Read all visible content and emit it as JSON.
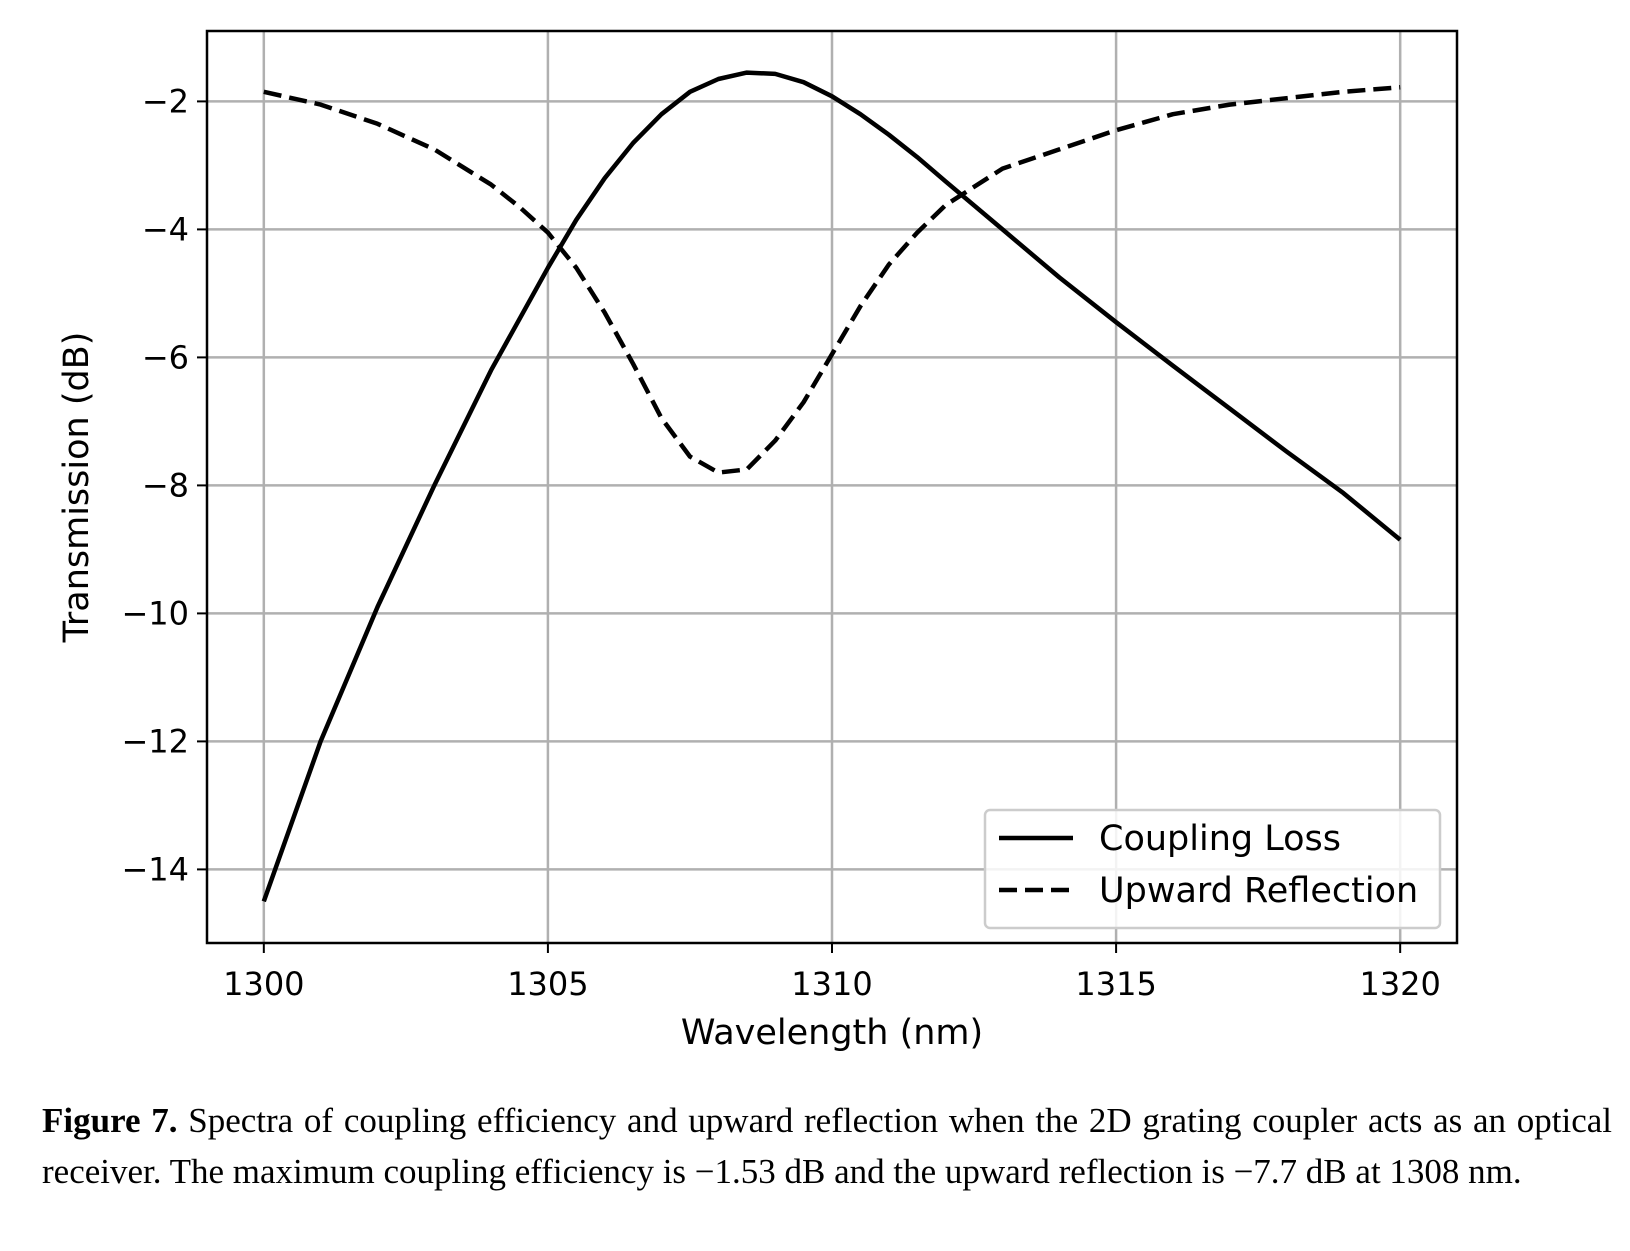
{
  "chart_data": {
    "type": "line",
    "xlabel": "Wavelength (nm)",
    "ylabel": "Transmission (dB)",
    "xlim": [
      1299,
      1321
    ],
    "ylim": [
      -15.15,
      -0.9
    ],
    "xticks": [
      1300,
      1305,
      1310,
      1315,
      1320
    ],
    "yticks": [
      -2,
      -4,
      -6,
      -8,
      -10,
      -12,
      -14
    ],
    "xtick_labels": [
      "1300",
      "1305",
      "1310",
      "1315",
      "1320"
    ],
    "ytick_labels": [
      "−2",
      "−4",
      "−6",
      "−8",
      "−10",
      "−12",
      "−14"
    ],
    "grid": true,
    "legend_position": "lower right",
    "series": [
      {
        "name": "Coupling Loss",
        "style": "solid",
        "color": "#000000",
        "x": [
          1300,
          1301,
          1302,
          1303,
          1304,
          1305,
          1305.5,
          1306,
          1306.5,
          1307,
          1307.5,
          1308,
          1308.5,
          1309,
          1309.5,
          1310,
          1310.5,
          1311,
          1311.5,
          1312,
          1313,
          1314,
          1315,
          1316,
          1317,
          1318,
          1319,
          1320
        ],
        "y": [
          -14.5,
          -12.0,
          -9.9,
          -8.0,
          -6.2,
          -4.6,
          -3.85,
          -3.2,
          -2.65,
          -2.2,
          -1.85,
          -1.65,
          -1.55,
          -1.57,
          -1.7,
          -1.92,
          -2.2,
          -2.52,
          -2.87,
          -3.25,
          -4.0,
          -4.75,
          -5.45,
          -6.13,
          -6.8,
          -7.47,
          -8.12,
          -8.85
        ]
      },
      {
        "name": "Upward Reflection",
        "style": "dashed",
        "color": "#000000",
        "x": [
          1300,
          1301,
          1302,
          1303,
          1304,
          1304.5,
          1305,
          1305.5,
          1306,
          1306.5,
          1307,
          1307.5,
          1308,
          1308.5,
          1309,
          1309.5,
          1310,
          1310.5,
          1311,
          1311.5,
          1312,
          1313,
          1314,
          1315,
          1316,
          1317,
          1318,
          1319,
          1320
        ],
        "y": [
          -1.85,
          -2.05,
          -2.35,
          -2.75,
          -3.3,
          -3.65,
          -4.05,
          -4.6,
          -5.3,
          -6.1,
          -6.95,
          -7.55,
          -7.8,
          -7.75,
          -7.3,
          -6.7,
          -5.95,
          -5.2,
          -4.55,
          -4.05,
          -3.62,
          -3.05,
          -2.75,
          -2.45,
          -2.2,
          -2.05,
          -1.95,
          -1.85,
          -1.78
        ]
      }
    ]
  },
  "caption": {
    "label": "Figure 7.",
    "text": " Spectra of coupling efficiency and upward reflection when the 2D grating coupler acts as an optical receiver. The maximum coupling efficiency is −1.53 dB and the upward reflection is −7.7 dB at 1308 nm."
  }
}
